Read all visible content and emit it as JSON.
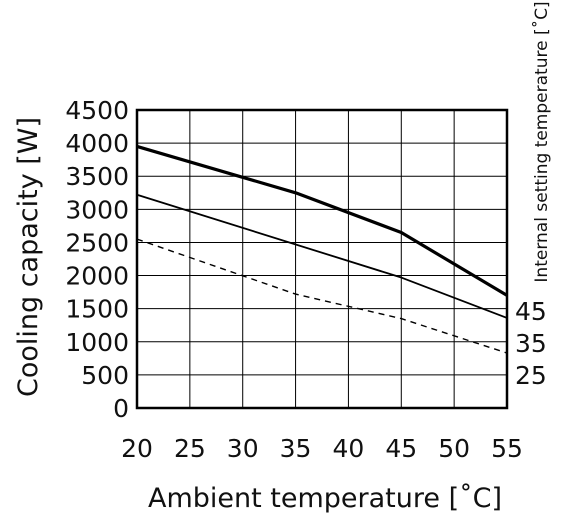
{
  "chart_data": {
    "type": "line",
    "title": "",
    "xlabel": "Ambient temperature [˚C]",
    "ylabel": "Cooling capacity [W]",
    "right_label": "Internal setting temperature [˚C]",
    "xlim": [
      20,
      55
    ],
    "ylim": [
      0,
      4500
    ],
    "x_ticks": [
      "20",
      "25",
      "30",
      "35",
      "40",
      "45",
      "50",
      "55"
    ],
    "y_ticks": [
      "0",
      "500",
      "1000",
      "1500",
      "2000",
      "2500",
      "3000",
      "3500",
      "4000",
      "4500"
    ],
    "grid": true,
    "series": [
      {
        "name": "45",
        "style": "thick",
        "x": [
          20,
          35,
          45,
          55
        ],
        "values": [
          3950,
          3250,
          2650,
          1700
        ]
      },
      {
        "name": "35",
        "style": "thin",
        "x": [
          20,
          45,
          55
        ],
        "values": [
          3220,
          1970,
          1360
        ]
      },
      {
        "name": "25",
        "style": "dashed",
        "x": [
          20,
          35,
          45,
          55
        ],
        "values": [
          2550,
          1720,
          1350,
          830
        ]
      }
    ],
    "colors": {
      "line": "#000000",
      "grid": "#000000"
    }
  }
}
